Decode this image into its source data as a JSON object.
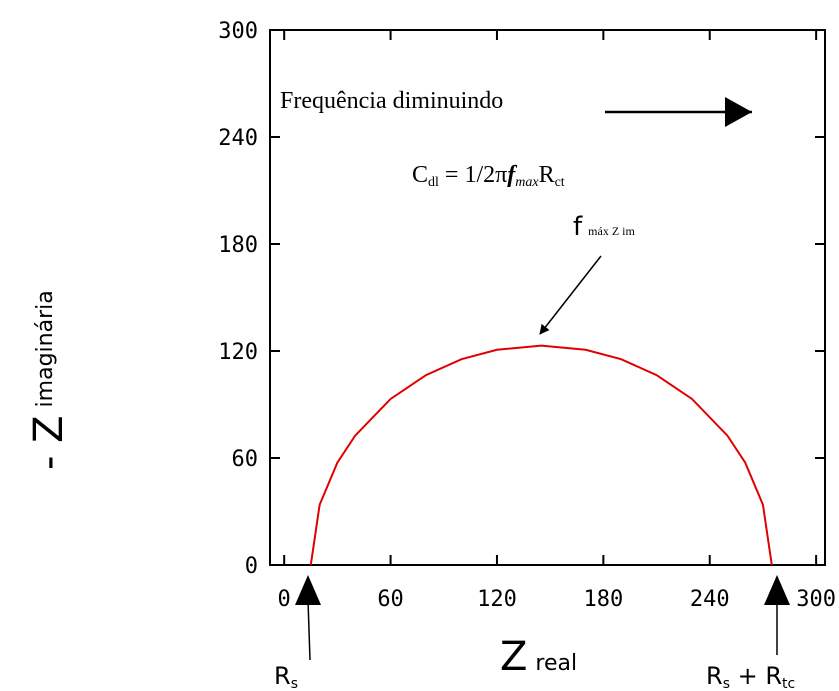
{
  "chart_data": {
    "type": "line",
    "x": [
      15,
      20,
      30,
      40,
      60,
      80,
      100,
      120,
      145,
      170,
      190,
      210,
      230,
      250,
      260,
      270,
      275
    ],
    "values": [
      0,
      33.8,
      57.4,
      72.5,
      93.1,
      106.5,
      115.4,
      120.7,
      123,
      120.7,
      115.4,
      106.5,
      93.1,
      72.5,
      57.4,
      33.8,
      0
    ],
    "color": "#e00000",
    "xlim": [
      -8,
      305
    ],
    "ylim": [
      0,
      300
    ],
    "xticks": [
      0,
      60,
      120,
      180,
      240,
      300
    ],
    "yticks": [
      0,
      60,
      120,
      180,
      240,
      300
    ],
    "x_label": [
      "Z",
      "real"
    ],
    "y_label": [
      "- Z",
      "imaginária"
    ],
    "annotation": "Frequência diminuindo",
    "formula": [
      "C",
      "dl",
      " = 1/2π",
      "f",
      "max",
      "R",
      "ct"
    ],
    "fmax_label": [
      "f",
      "máx Z im"
    ],
    "rs_label": [
      "R",
      "s"
    ],
    "rsrtc_label": [
      "R",
      "s",
      " + R",
      "tc"
    ]
  }
}
